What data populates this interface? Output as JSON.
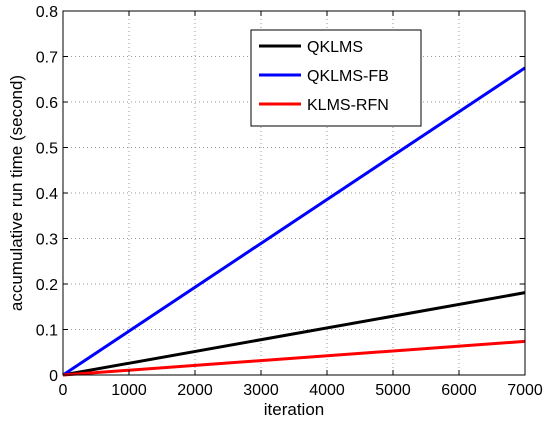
{
  "chart_data": {
    "type": "line",
    "title": "",
    "xlabel": "iteration",
    "ylabel": "accumulative run time (second)",
    "xlim": [
      0,
      7000
    ],
    "ylim": [
      0,
      0.8
    ],
    "xticks": [
      0,
      1000,
      2000,
      3000,
      4000,
      5000,
      6000,
      7000
    ],
    "xtick_labels": [
      "0",
      "1000",
      "2000",
      "3000",
      "4000",
      "5000",
      "6000",
      "7000"
    ],
    "yticks": [
      0,
      0.1,
      0.2,
      0.3,
      0.4,
      0.5,
      0.6,
      0.7,
      0.8
    ],
    "ytick_labels": [
      "0",
      "0.1",
      "0.2",
      "0.3",
      "0.4",
      "0.5",
      "0.6",
      "0.7",
      "0.8"
    ],
    "grid": true,
    "legend_position": "top-center",
    "x": [
      0,
      7000
    ],
    "series": [
      {
        "name": "QKLMS",
        "color": "#000000",
        "values": [
          0,
          0.181
        ]
      },
      {
        "name": "QKLMS-FB",
        "color": "#0000ff",
        "values": [
          0,
          0.675
        ]
      },
      {
        "name": "KLMS-RFN",
        "color": "#ff0000",
        "values": [
          0,
          0.074
        ]
      }
    ]
  }
}
